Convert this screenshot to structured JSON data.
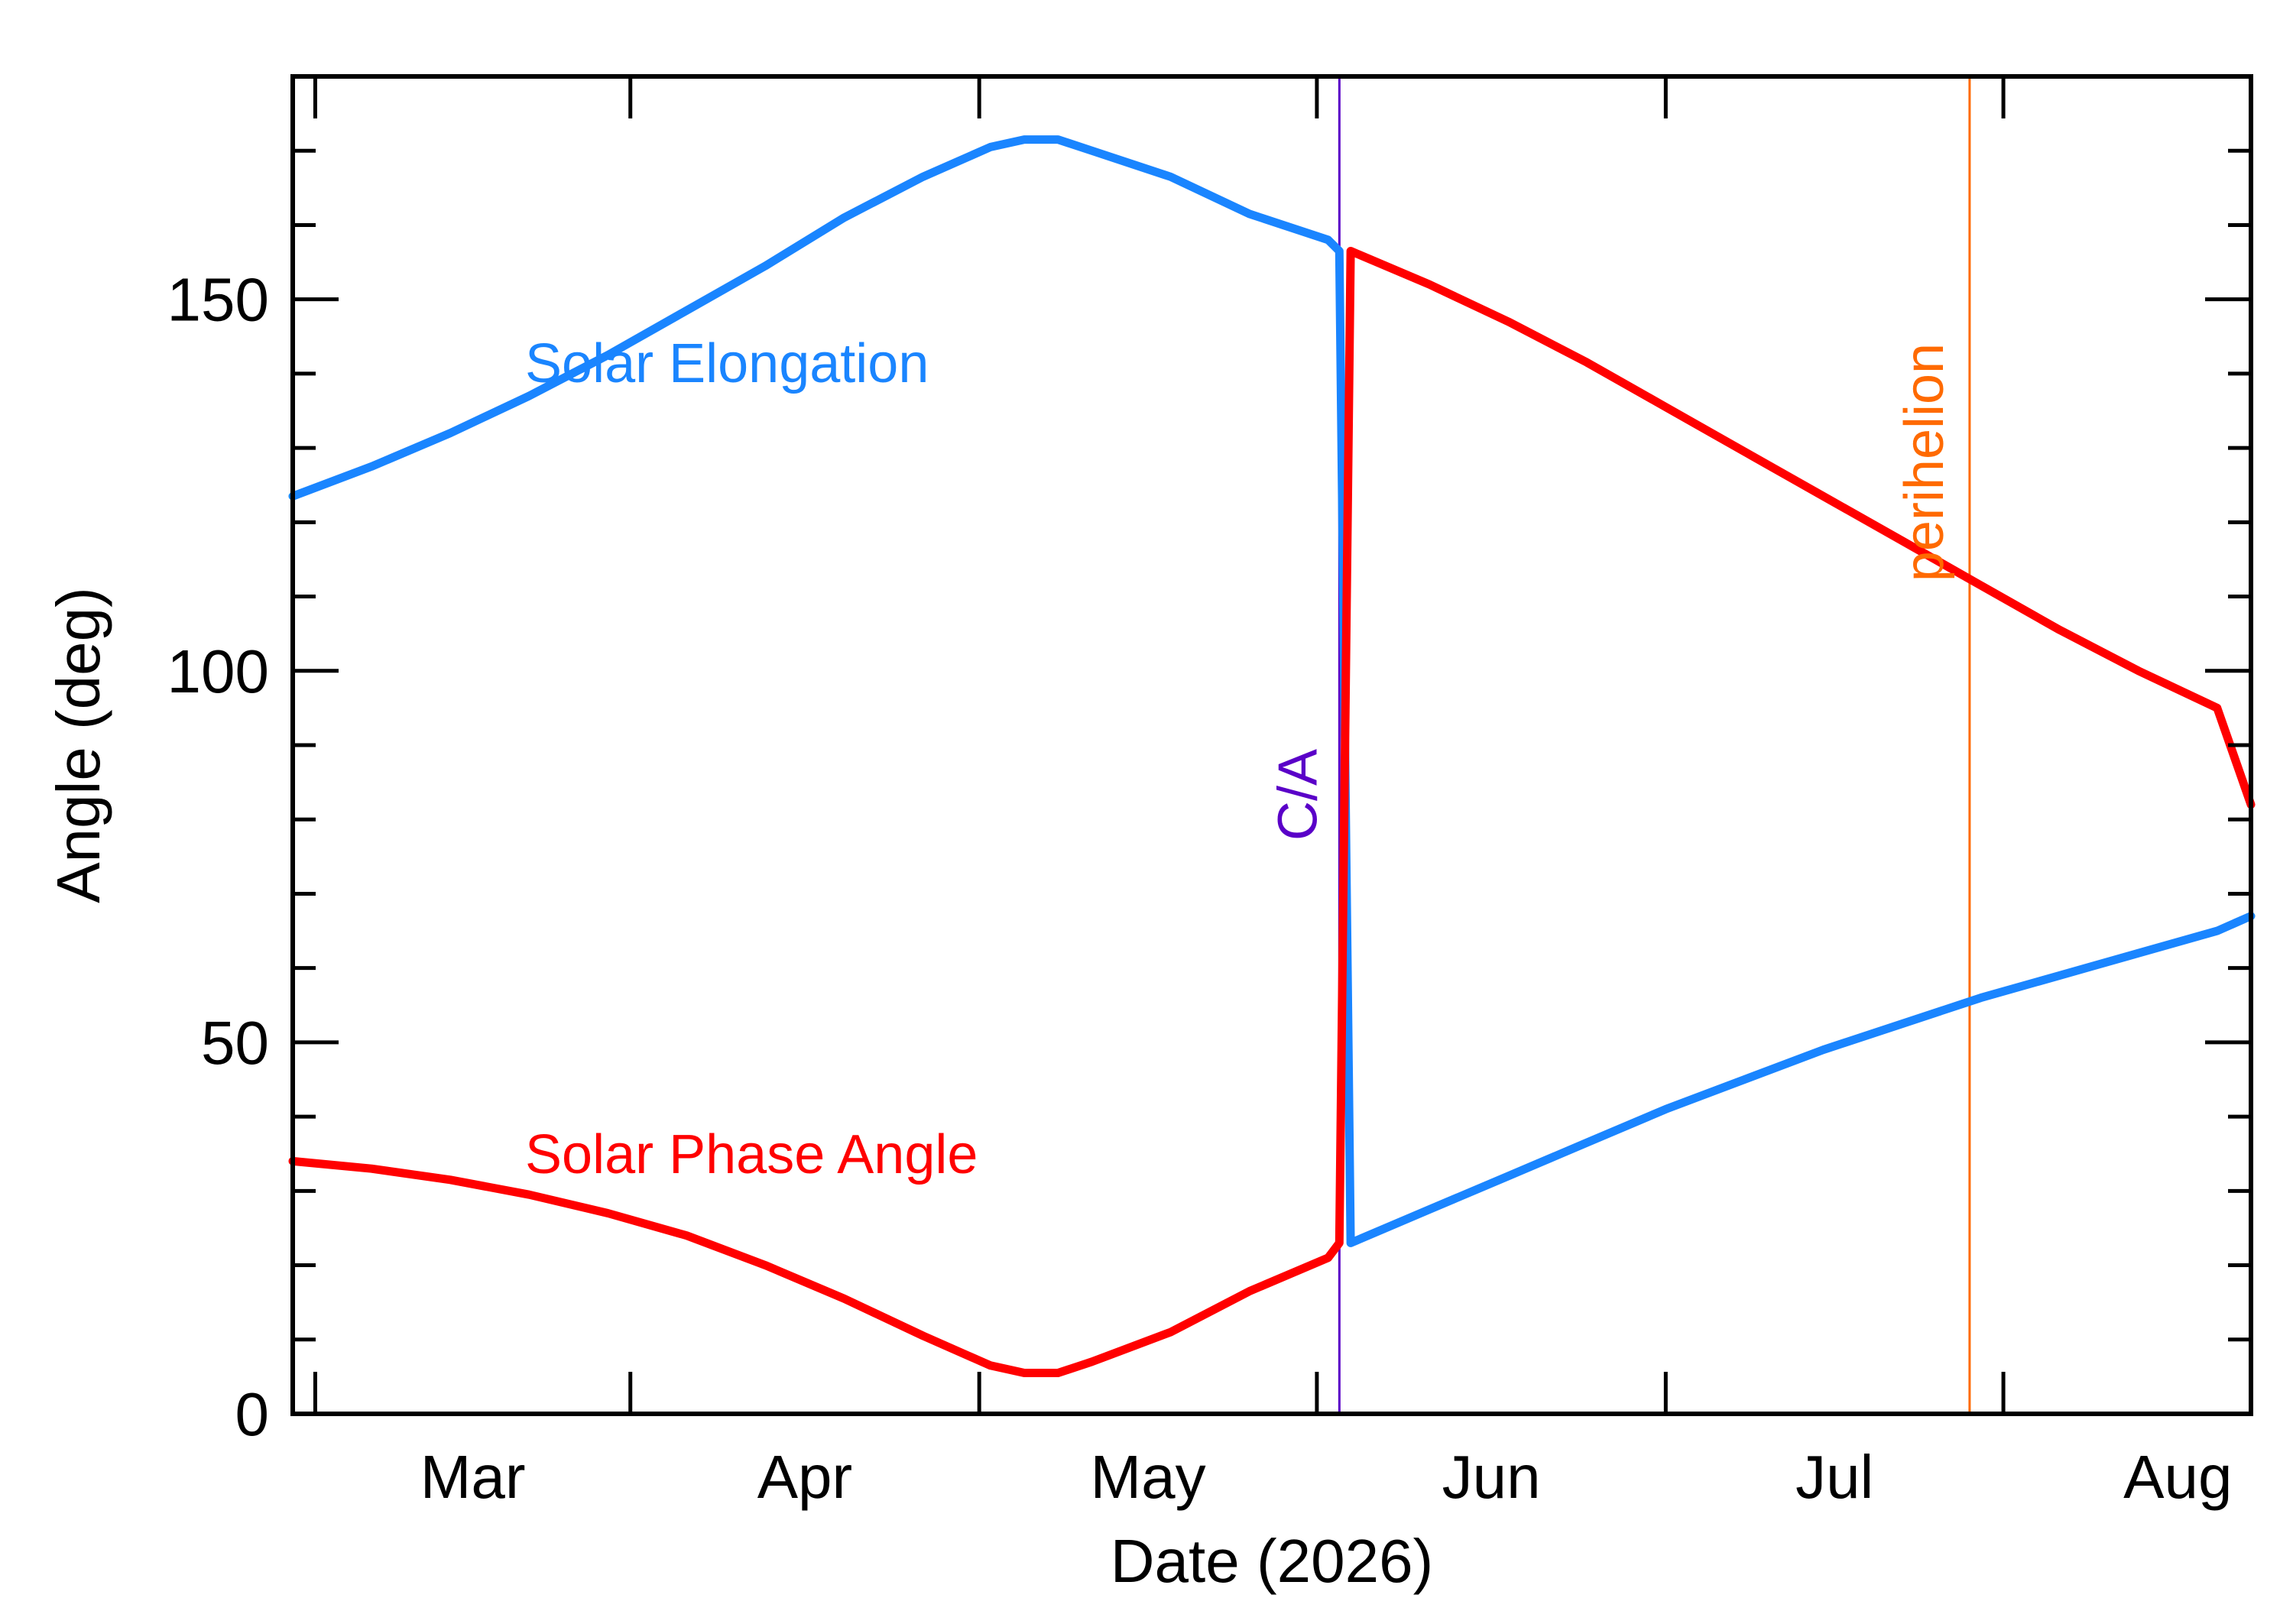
{
  "chart_data": {
    "type": "line",
    "xlabel": "Date (2026)",
    "ylabel": "Angle (deg)",
    "xlim": [
      "2026-02-08",
      "2026-08-01"
    ],
    "ylim": [
      0,
      180
    ],
    "x_ticks": [
      {
        "date": "2026-02-10",
        "label": ""
      },
      {
        "date": "2026-03-10",
        "label": "Mar"
      },
      {
        "date": "2026-04-10",
        "label": "Apr"
      },
      {
        "date": "2026-05-10",
        "label": "May"
      },
      {
        "date": "2026-06-10",
        "label": "Jun"
      },
      {
        "date": "2026-07-10",
        "label": "Jul"
      },
      {
        "date": "2026-08-10",
        "label": "Aug"
      }
    ],
    "y_ticks": [
      {
        "value": 0,
        "label": "0"
      },
      {
        "value": 50,
        "label": "50"
      },
      {
        "value": 100,
        "label": "100"
      },
      {
        "value": 150,
        "label": "150"
      }
    ],
    "y_minor_step": 10,
    "grid": false,
    "series": [
      {
        "name": "Solar Elongation",
        "color": "#1a85ff",
        "points": [
          [
            "2026-02-08",
            123.5
          ],
          [
            "2026-02-15",
            127.5
          ],
          [
            "2026-02-22",
            132.0
          ],
          [
            "2026-03-01",
            137.0
          ],
          [
            "2026-03-08",
            142.5
          ],
          [
            "2026-03-15",
            148.5
          ],
          [
            "2026-03-22",
            154.5
          ],
          [
            "2026-03-29",
            161.0
          ],
          [
            "2026-04-05",
            166.5
          ],
          [
            "2026-04-11",
            170.5
          ],
          [
            "2026-04-14",
            171.5
          ],
          [
            "2026-04-17",
            171.5
          ],
          [
            "2026-04-20",
            170.0
          ],
          [
            "2026-04-27",
            166.5
          ],
          [
            "2026-05-04",
            161.5
          ],
          [
            "2026-05-11",
            158.0
          ],
          [
            "2026-05-12",
            156.5
          ],
          [
            "2026-05-13",
            23.0
          ],
          [
            "2026-05-20",
            27.5
          ],
          [
            "2026-05-27",
            32.0
          ],
          [
            "2026-06-03",
            36.5
          ],
          [
            "2026-06-10",
            41.0
          ],
          [
            "2026-06-17",
            45.0
          ],
          [
            "2026-06-24",
            49.0
          ],
          [
            "2026-07-01",
            52.5
          ],
          [
            "2026-07-08",
            56.0
          ],
          [
            "2026-07-15",
            59.0
          ],
          [
            "2026-07-22",
            62.0
          ],
          [
            "2026-07-29",
            65.0
          ],
          [
            "2026-08-01",
            67.0
          ]
        ]
      },
      {
        "name": "Solar Phase Angle",
        "color": "#ff0000",
        "points": [
          [
            "2026-02-08",
            34.0
          ],
          [
            "2026-02-15",
            33.0
          ],
          [
            "2026-02-22",
            31.5
          ],
          [
            "2026-03-01",
            29.5
          ],
          [
            "2026-03-08",
            27.0
          ],
          [
            "2026-03-15",
            24.0
          ],
          [
            "2026-03-22",
            20.0
          ],
          [
            "2026-03-29",
            15.5
          ],
          [
            "2026-04-05",
            10.5
          ],
          [
            "2026-04-11",
            6.5
          ],
          [
            "2026-04-14",
            5.5
          ],
          [
            "2026-04-17",
            5.5
          ],
          [
            "2026-04-20",
            7.0
          ],
          [
            "2026-04-27",
            11.0
          ],
          [
            "2026-05-04",
            16.5
          ],
          [
            "2026-05-11",
            21.0
          ],
          [
            "2026-05-12",
            23.0
          ],
          [
            "2026-05-13",
            156.5
          ],
          [
            "2026-05-20",
            152.0
          ],
          [
            "2026-05-27",
            147.0
          ],
          [
            "2026-06-03",
            141.5
          ],
          [
            "2026-06-10",
            135.5
          ],
          [
            "2026-06-17",
            129.5
          ],
          [
            "2026-06-24",
            123.5
          ],
          [
            "2026-07-01",
            117.5
          ],
          [
            "2026-07-08",
            111.5
          ],
          [
            "2026-07-15",
            105.5
          ],
          [
            "2026-07-22",
            100.0
          ],
          [
            "2026-07-29",
            95.0
          ],
          [
            "2026-08-01",
            82.0
          ]
        ]
      }
    ],
    "vertical_markers": [
      {
        "label": "C/A",
        "date": "2026-05-12",
        "color": "#5a00c8"
      },
      {
        "label": "perihelion",
        "date": "2026-07-07",
        "color": "#ff6a00"
      }
    ],
    "annotations": [
      {
        "text": "Solar Elongation",
        "series": "Solar Elongation"
      },
      {
        "text": "Solar Phase Angle",
        "series": "Solar Phase Angle"
      }
    ]
  }
}
